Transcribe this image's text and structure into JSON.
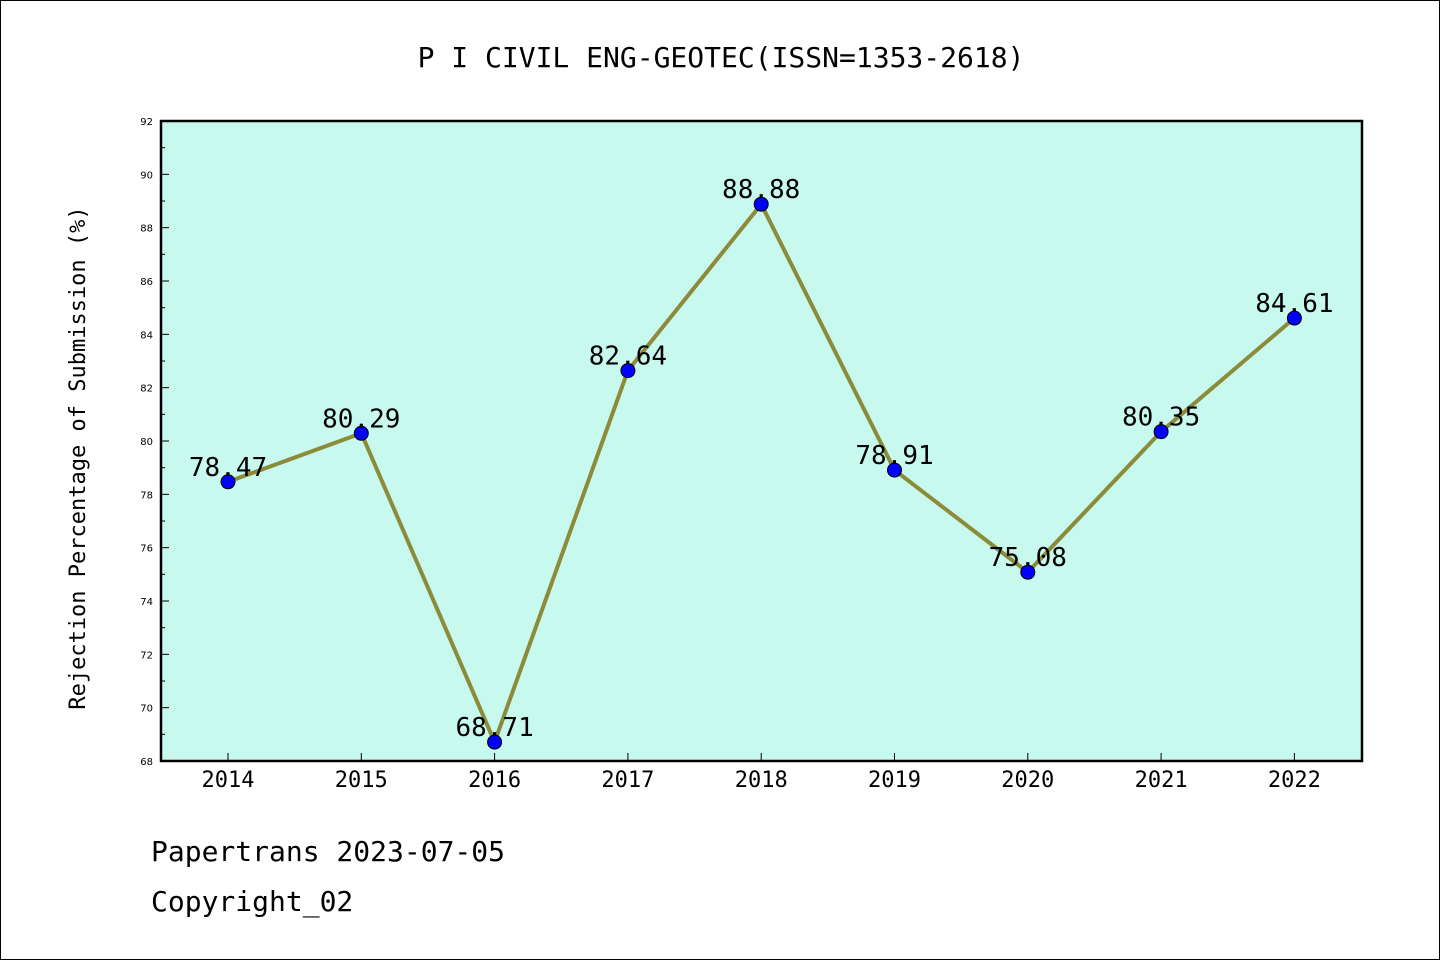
{
  "chart_data": {
    "type": "line",
    "title": "P I CIVIL ENG-GEOTEC(ISSN=1353-2618)",
    "xlabel": "",
    "ylabel": "Rejection Percentage of Submission (%)",
    "categories": [
      "2014",
      "2015",
      "2016",
      "2017",
      "2018",
      "2019",
      "2020",
      "2021",
      "2022"
    ],
    "series": [
      {
        "values": [
          78.47,
          80.29,
          68.71,
          82.64,
          88.88,
          78.91,
          75.08,
          80.35,
          84.61
        ],
        "labels": [
          "78.47",
          "80.29",
          "68.71",
          "82.64",
          "88.88",
          "78.91",
          "75.08",
          "80.35",
          "84.61"
        ],
        "line_color": "#8b8b3a",
        "marker_color": "#0000ff"
      }
    ],
    "ylim": [
      68,
      92
    ],
    "yticks": [
      "68",
      "70",
      "72",
      "74",
      "76",
      "78",
      "80",
      "82",
      "84",
      "86",
      "88",
      "90",
      "92"
    ],
    "plot_background": "#c8f9ee",
    "grid": false,
    "legend": "none"
  },
  "footer": {
    "line1": "Papertrans 2023-07-05",
    "line2": "Copyright_02"
  }
}
